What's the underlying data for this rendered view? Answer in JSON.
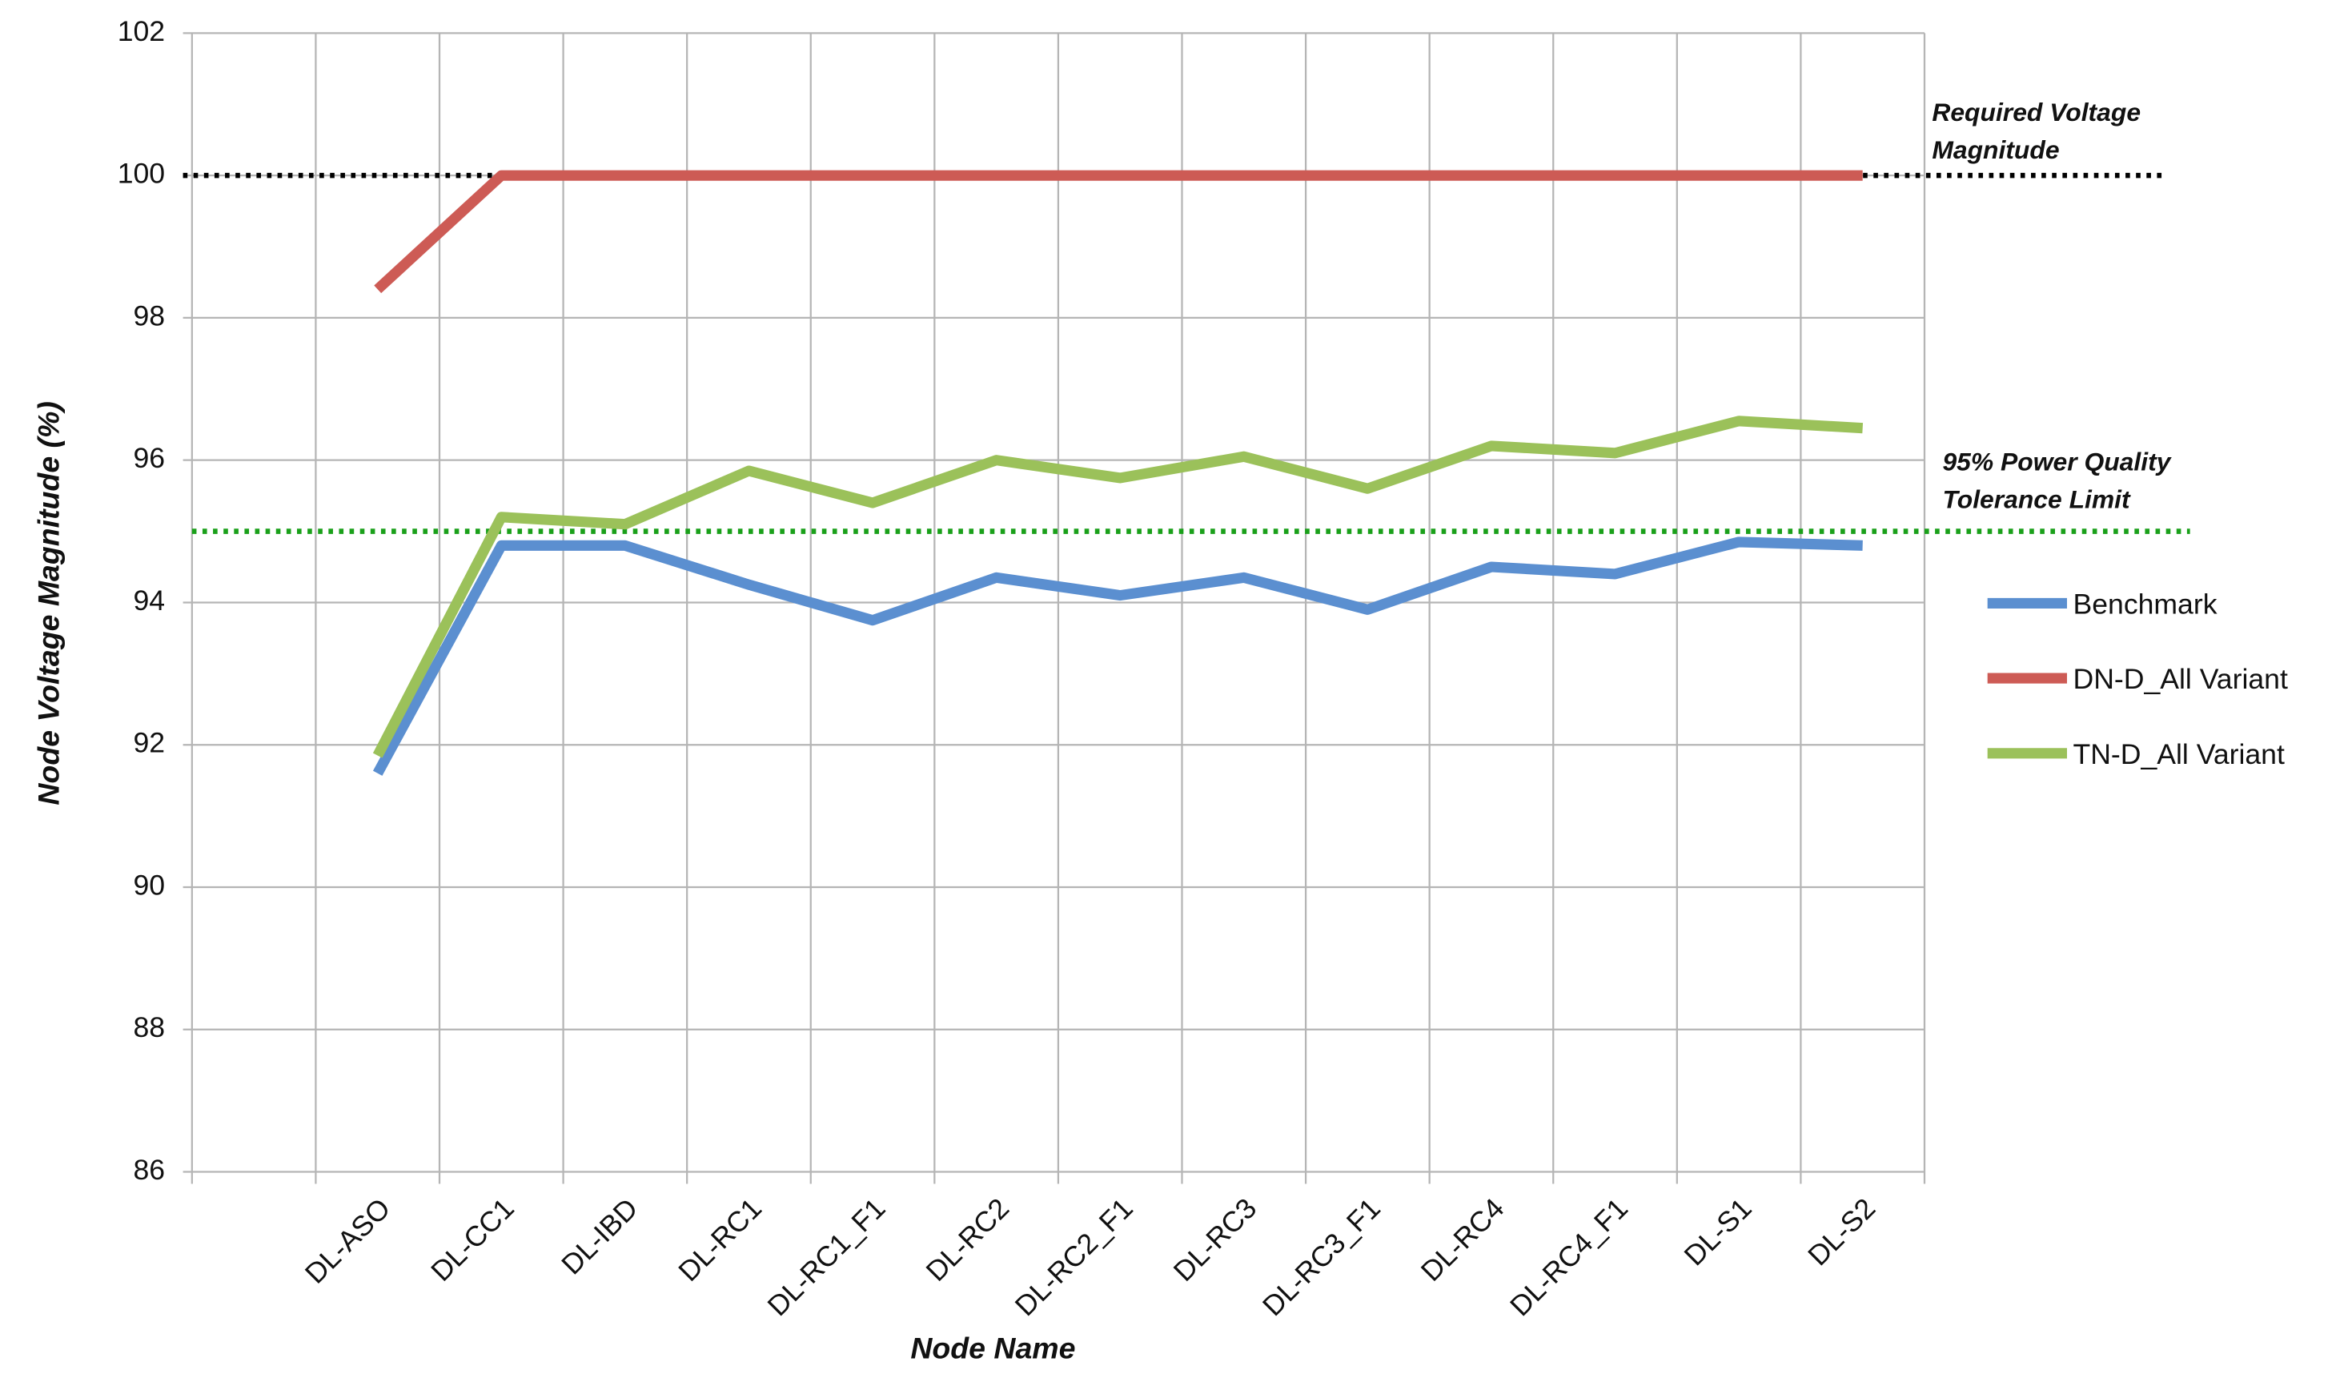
{
  "chart_data": {
    "type": "line",
    "categories": [
      null,
      "DL-ASO",
      "DL-CC1",
      "DL-IBD",
      "DL-RC1",
      "DL-RC1_F1",
      "DL-RC2",
      "DL-RC2_F1",
      "DL-RC3",
      "DL-RC3_F1",
      "DL-RC4",
      "DL-RC4_F1",
      "DL-S1",
      "DL-S2"
    ],
    "series": [
      {
        "name": "Benchmark",
        "color": "#5b8fd0",
        "values": [
          null,
          91.6,
          94.8,
          94.8,
          94.25,
          93.75,
          94.35,
          94.1,
          94.35,
          93.9,
          94.5,
          94.4,
          94.85,
          94.8
        ]
      },
      {
        "name": "DN-D_All Variant",
        "color": "#cd5b55",
        "values": [
          null,
          98.4,
          100,
          100,
          100,
          100,
          100,
          100,
          100,
          100,
          100,
          100,
          100,
          100
        ]
      },
      {
        "name": "TN-D_All Variant",
        "color": "#9bc15a",
        "values": [
          null,
          91.85,
          95.2,
          95.1,
          95.85,
          95.4,
          96.0,
          95.75,
          96.05,
          95.6,
          96.2,
          96.1,
          96.55,
          96.45
        ]
      }
    ],
    "xlabel": "Node Name",
    "ylabel": "Node Voltage Magnitude (%)",
    "ylim": [
      86,
      102
    ],
    "yticks": [
      86,
      88,
      90,
      92,
      94,
      96,
      98,
      100,
      102
    ],
    "grid": true,
    "legend": "right",
    "reference_lines": [
      {
        "value": 100,
        "color": "#000000",
        "label": [
          "Required Voltage",
          "Magnitude"
        ]
      },
      {
        "value": 95,
        "color": "#1aa01a",
        "label": [
          "95% Power Quality",
          "Tolerance Limit"
        ]
      }
    ]
  }
}
